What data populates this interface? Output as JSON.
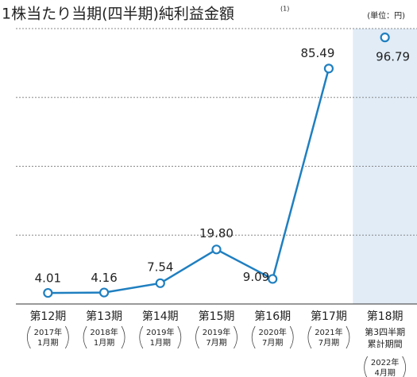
{
  "chart_data": {
    "type": "line",
    "title": "1株当たり当期(四半期)純利益金額",
    "title_note": "(1)",
    "unit_label": "(単位：円)",
    "categories": [
      "第12期",
      "第13期",
      "第14期",
      "第15期",
      "第16期",
      "第17期",
      "第18期"
    ],
    "periods": [
      [
        "2017年",
        "1月期"
      ],
      [
        "2018年",
        "1月期"
      ],
      [
        "2019年",
        "1月期"
      ],
      [
        "2019年",
        "7月期"
      ],
      [
        "2020年",
        "7月期"
      ],
      [
        "2021年",
        "7月期"
      ],
      [
        "2022年",
        "4月期"
      ]
    ],
    "highlight_index": 6,
    "highlight_detail": [
      "第3四半期",
      "累計期間"
    ],
    "highlight_color": "#e1ecf7",
    "values": [
      4.01,
      4.16,
      7.54,
      19.8,
      9.09,
      85.49,
      96.79
    ],
    "value_labels": [
      "4.01",
      "4.16",
      "7.54",
      "19.80",
      "9.09",
      "85.49",
      "96.79"
    ],
    "color": "#1f7fc0",
    "ylim": [
      0,
      100
    ],
    "yticks": [
      0,
      25,
      50,
      75,
      100
    ],
    "grid": true,
    "tick_labels": false
  }
}
